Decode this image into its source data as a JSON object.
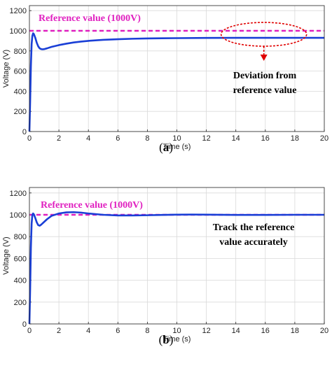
{
  "chart_data": [
    {
      "type": "line",
      "panel_label": "a",
      "xlabel": "Time (s)",
      "ylabel": "Voltage (V)",
      "xlim": [
        0,
        20
      ],
      "ylim": [
        0,
        1250
      ],
      "xticks": [
        0,
        2,
        4,
        6,
        8,
        10,
        12,
        14,
        16,
        18,
        20
      ],
      "yticks": [
        0,
        200,
        400,
        600,
        800,
        1000,
        1200
      ],
      "grid": true,
      "reference": {
        "label": "Reference value (1000V)",
        "value": 1000,
        "color": "#e020c0",
        "style": "dashed"
      },
      "series": [
        {
          "color": "#1a3fd6",
          "points": [
            [
              0,
              0
            ],
            [
              0.05,
              300
            ],
            [
              0.1,
              650
            ],
            [
              0.15,
              870
            ],
            [
              0.2,
              950
            ],
            [
              0.25,
              975
            ],
            [
              0.3,
              968
            ],
            [
              0.4,
              930
            ],
            [
              0.5,
              880
            ],
            [
              0.6,
              845
            ],
            [
              0.7,
              825
            ],
            [
              0.8,
              818
            ],
            [
              0.9,
              816
            ],
            [
              1.0,
              818
            ],
            [
              1.2,
              826
            ],
            [
              1.5,
              840
            ],
            [
              2,
              858
            ],
            [
              2.5,
              872
            ],
            [
              3,
              884
            ],
            [
              3.5,
              893
            ],
            [
              4,
              900
            ],
            [
              5,
              910
            ],
            [
              6,
              916
            ],
            [
              7,
              921
            ],
            [
              8,
              924
            ],
            [
              9,
              926
            ],
            [
              10,
              927
            ],
            [
              12,
              929
            ],
            [
              14,
              930
            ],
            [
              16,
              930
            ],
            [
              18,
              930
            ],
            [
              20,
              930
            ]
          ]
        }
      ],
      "annotations": [
        {
          "lines": [
            "Deviation from",
            "reference value"
          ],
          "target": {
            "x_range": [
              13,
              18.8
            ],
            "y": 965
          }
        }
      ]
    },
    {
      "type": "line",
      "panel_label": "b",
      "xlabel": "Time (s)",
      "ylabel": "Voltage (V)",
      "xlim": [
        0,
        20
      ],
      "ylim": [
        0,
        1250
      ],
      "xticks": [
        0,
        2,
        4,
        6,
        8,
        10,
        12,
        14,
        16,
        18,
        20
      ],
      "yticks": [
        0,
        200,
        400,
        600,
        800,
        1000,
        1200
      ],
      "grid": true,
      "reference": {
        "label": "Reference value (1000V)",
        "value": 1000,
        "color": "#e020c0",
        "style": "dashed"
      },
      "series": [
        {
          "color": "#1a3fd6",
          "points": [
            [
              0,
              0
            ],
            [
              0.05,
              320
            ],
            [
              0.1,
              700
            ],
            [
              0.15,
              920
            ],
            [
              0.2,
              1000
            ],
            [
              0.25,
              1012
            ],
            [
              0.3,
              1005
            ],
            [
              0.4,
              970
            ],
            [
              0.5,
              930
            ],
            [
              0.6,
              905
            ],
            [
              0.7,
              900
            ],
            [
              0.8,
              910
            ],
            [
              1.0,
              935
            ],
            [
              1.2,
              960
            ],
            [
              1.5,
              990
            ],
            [
              2,
              1012
            ],
            [
              2.5,
              1022
            ],
            [
              3,
              1024
            ],
            [
              3.5,
              1020
            ],
            [
              4,
              1012
            ],
            [
              5,
              1000
            ],
            [
              6,
              994
            ],
            [
              7,
              994
            ],
            [
              8,
              996
            ],
            [
              9,
              999
            ],
            [
              10,
              1001
            ],
            [
              11,
              1002
            ],
            [
              12,
              1001
            ],
            [
              14,
              999
            ],
            [
              16,
              999
            ],
            [
              18,
              1000
            ],
            [
              20,
              1000
            ]
          ]
        }
      ],
      "annotations": [
        {
          "lines": [
            "Track the reference",
            "value accurately"
          ]
        }
      ]
    }
  ]
}
